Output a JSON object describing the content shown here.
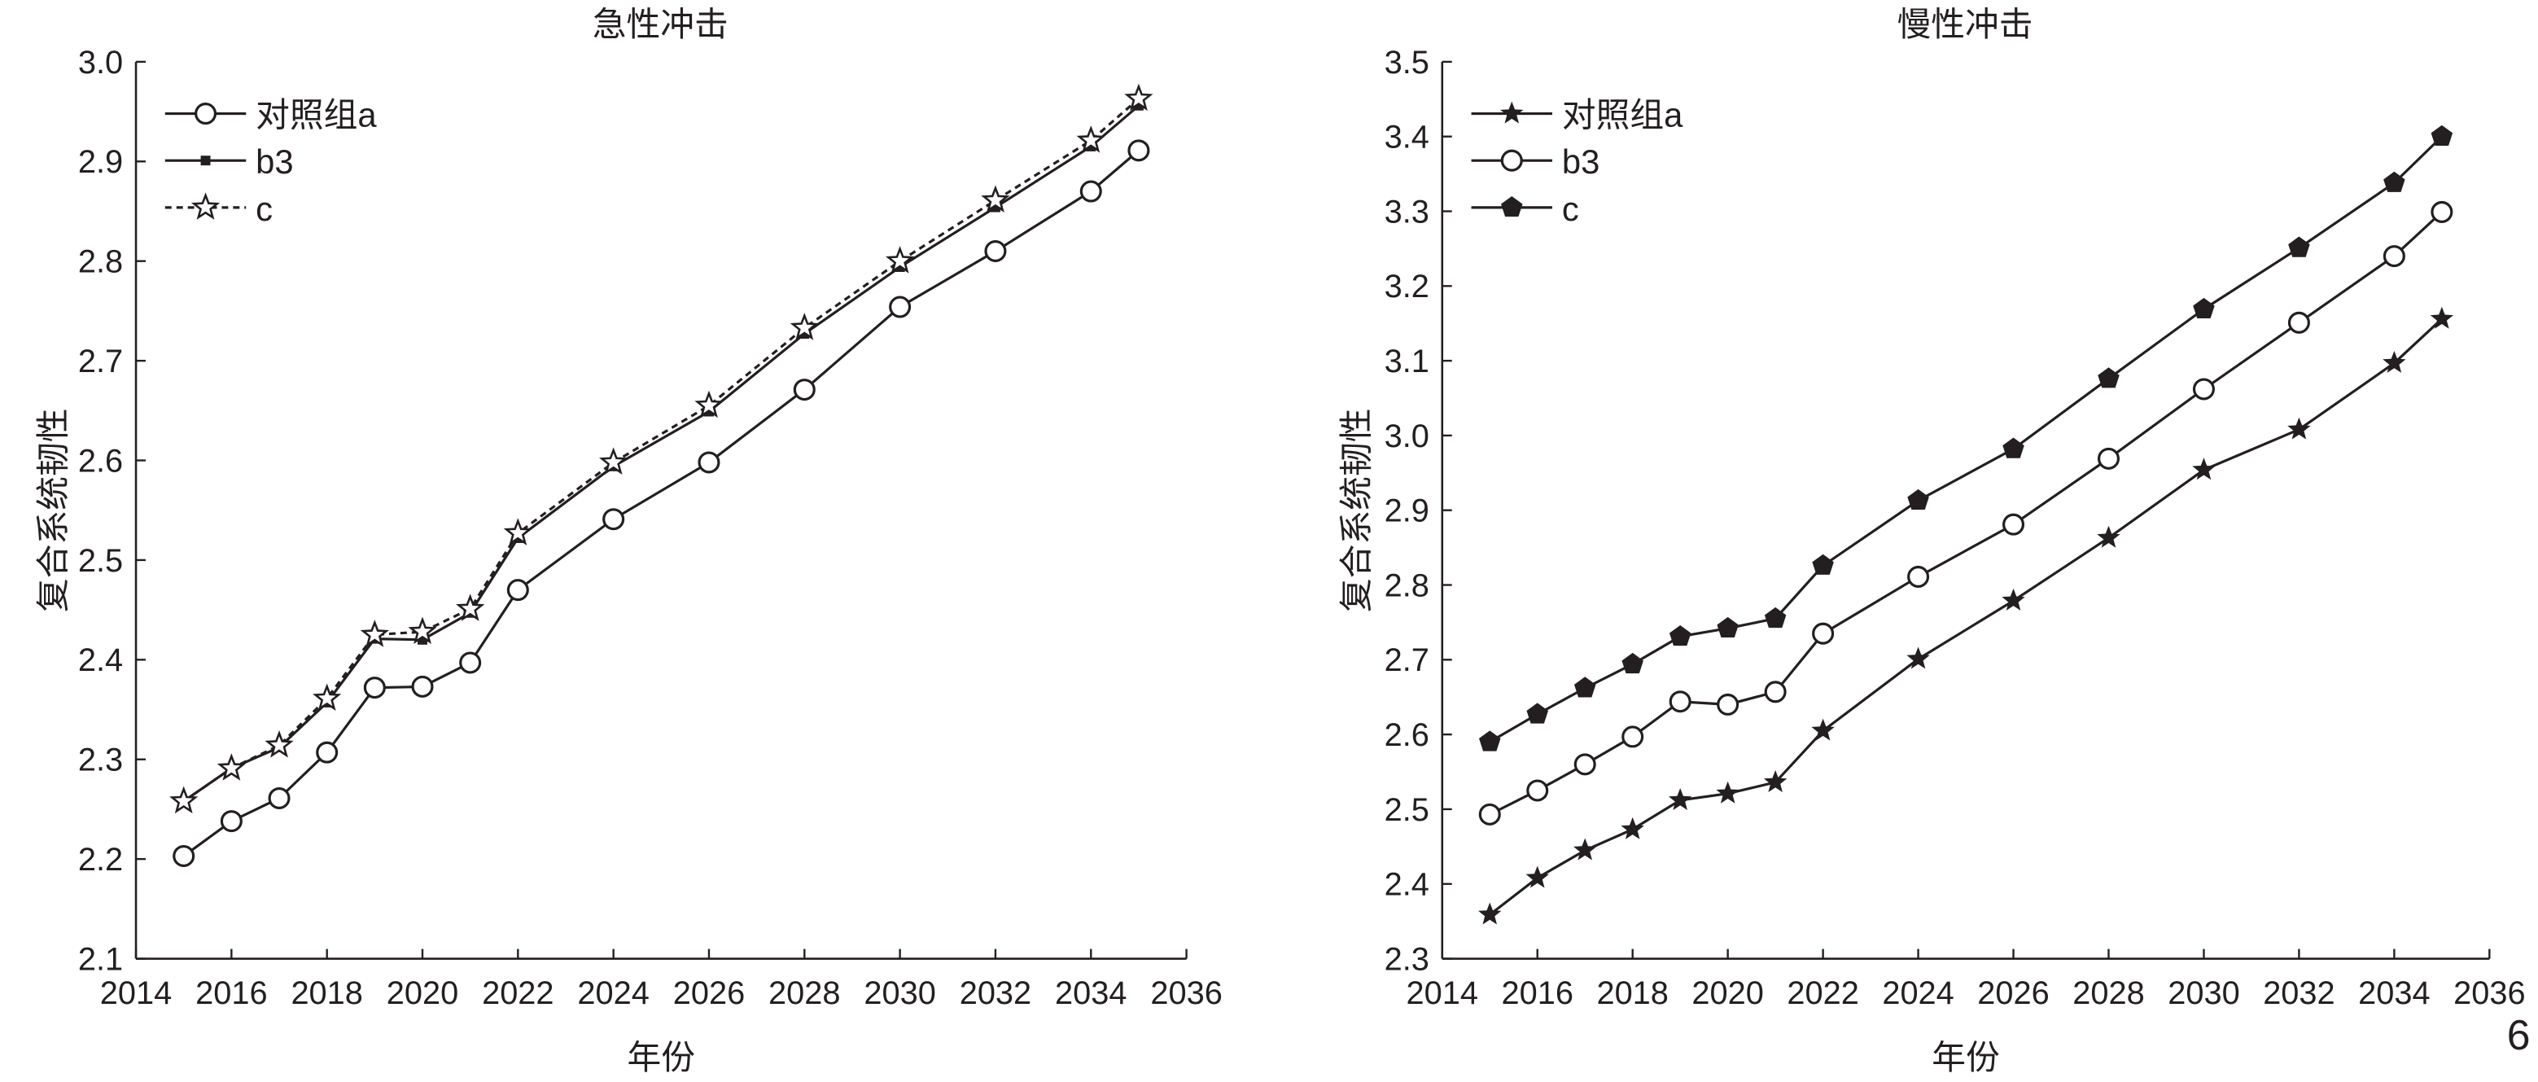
{
  "panel_label": "6",
  "chart_data": [
    {
      "type": "line",
      "title": "急性冲击",
      "xlabel": "年份",
      "ylabel": "复合系统韧性",
      "xlim": [
        2014,
        2036
      ],
      "ylim": [
        2.1,
        3.0
      ],
      "xticks": [
        2014,
        2016,
        2018,
        2020,
        2022,
        2024,
        2026,
        2028,
        2030,
        2032,
        2034,
        2036
      ],
      "yticks": [
        "2.1",
        "2.2",
        "2.3",
        "2.4",
        "2.5",
        "2.6",
        "2.7",
        "2.8",
        "2.9",
        "3.0"
      ],
      "legend_position": "top-left",
      "grid": false,
      "x": [
        2015,
        2016,
        2017,
        2018,
        2019,
        2020,
        2021,
        2022,
        2024,
        2026,
        2028,
        2030,
        2032,
        2034,
        2035
      ],
      "series": [
        {
          "name": "对照组a",
          "marker": "open-circle",
          "dash": "solid",
          "values": [
            2.203,
            2.238,
            2.261,
            2.307,
            2.372,
            2.373,
            2.397,
            2.47,
            2.541,
            2.598,
            2.671,
            2.754,
            2.81,
            2.87,
            2.911
          ]
        },
        {
          "name": "b3",
          "marker": "filled-square",
          "dash": "solid",
          "values": [
            2.258,
            2.291,
            2.312,
            2.357,
            2.421,
            2.42,
            2.447,
            2.522,
            2.594,
            2.649,
            2.727,
            2.794,
            2.854,
            2.915,
            2.956
          ]
        },
        {
          "name": "c",
          "marker": "open-star",
          "dash": "dashed",
          "values": [
            2.258,
            2.291,
            2.314,
            2.361,
            2.425,
            2.428,
            2.451,
            2.527,
            2.598,
            2.655,
            2.733,
            2.8,
            2.861,
            2.921,
            2.963
          ]
        }
      ]
    },
    {
      "type": "line",
      "title": "慢性冲击",
      "xlabel": "年份",
      "ylabel": "复合系统韧性",
      "xlim": [
        2014,
        2036
      ],
      "ylim": [
        2.3,
        3.5
      ],
      "xticks": [
        2014,
        2016,
        2018,
        2020,
        2022,
        2024,
        2026,
        2028,
        2030,
        2032,
        2034,
        2036
      ],
      "yticks": [
        "2.3",
        "2.4",
        "2.5",
        "2.6",
        "2.7",
        "2.8",
        "2.9",
        "3.0",
        "3.1",
        "3.2",
        "3.3",
        "3.4",
        "3.5"
      ],
      "legend_position": "top-left",
      "grid": false,
      "x": [
        2015,
        2016,
        2017,
        2018,
        2019,
        2020,
        2021,
        2022,
        2024,
        2026,
        2028,
        2030,
        2032,
        2034,
        2035
      ],
      "series": [
        {
          "name": "对照组a",
          "marker": "filled-star",
          "dash": "solid",
          "values": [
            2.359,
            2.408,
            2.445,
            2.473,
            2.512,
            2.521,
            2.536,
            2.605,
            2.701,
            2.779,
            2.863,
            2.954,
            3.008,
            3.097,
            3.156
          ]
        },
        {
          "name": "b3",
          "marker": "open-circle",
          "dash": "solid",
          "values": [
            2.493,
            2.525,
            2.56,
            2.597,
            2.644,
            2.64,
            2.657,
            2.735,
            2.811,
            2.881,
            2.969,
            3.062,
            3.151,
            3.24,
            3.299
          ]
        },
        {
          "name": "c",
          "marker": "filled-pentagon",
          "dash": "solid",
          "values": [
            2.59,
            2.627,
            2.662,
            2.694,
            2.731,
            2.742,
            2.755,
            2.826,
            2.913,
            2.982,
            3.076,
            3.169,
            3.251,
            3.338,
            3.4
          ]
        }
      ]
    }
  ]
}
